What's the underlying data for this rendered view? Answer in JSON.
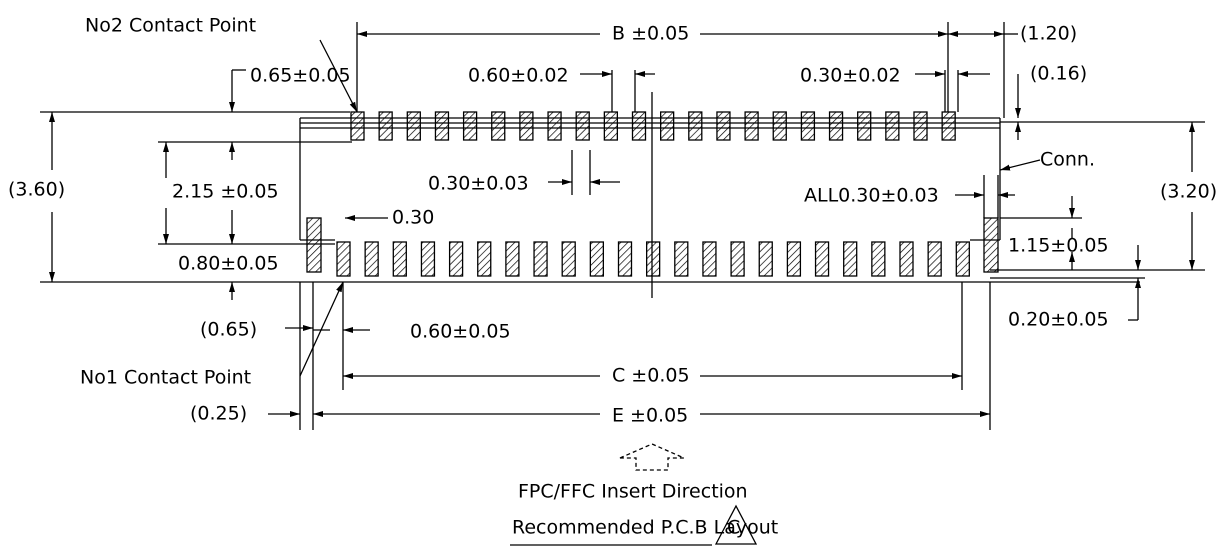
{
  "labels": [
    "No2 Contact Point",
    "B ±0.05",
    "(1.20)",
    "0.65±0.05",
    "0.60±0.02",
    "0.30±0.02",
    "(0.16)",
    "(3.60)",
    "2.15 ±0.05",
    "0.30±0.03",
    "Conn.",
    "ALL0.30±0.03",
    "(3.20)",
    "0.30",
    "0.80±0.05",
    "1.15±0.05",
    "0.20±0.05",
    "(0.65)",
    "0.60±0.05",
    "No1 Contact Point",
    "C ±0.05",
    "(0.25)",
    "E ±0.05",
    "FPC/FFC Insert Direction",
    "Recommended P.C.B Layout",
    "C"
  ]
}
